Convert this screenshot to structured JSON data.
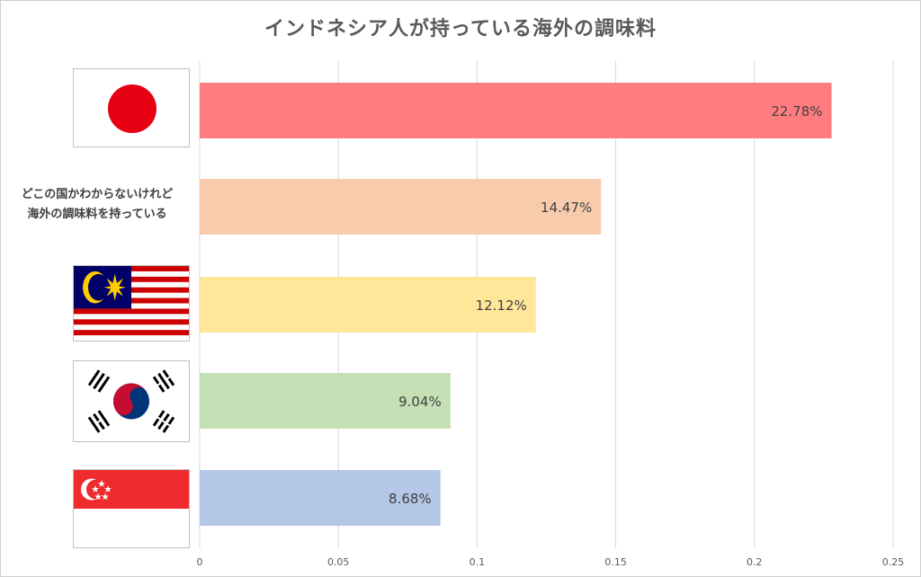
{
  "chart_data": {
    "type": "bar",
    "orientation": "horizontal",
    "title": "インドネシア人が持っている海外の調味料",
    "categories": [
      {
        "kind": "flag",
        "icon": "japan-flag-icon"
      },
      {
        "kind": "text",
        "lines": [
          "どこの国かわからないけれど",
          "海外の調味料を持っている"
        ]
      },
      {
        "kind": "flag",
        "icon": "malaysia-flag-icon"
      },
      {
        "kind": "flag",
        "icon": "south-korea-flag-icon"
      },
      {
        "kind": "flag",
        "icon": "singapore-flag-icon"
      }
    ],
    "values": [
      0.2278,
      0.1447,
      0.1212,
      0.0904,
      0.0868
    ],
    "data_labels": [
      "22.78%",
      "14.47%",
      "12.12%",
      "9.04%",
      "8.68%"
    ],
    "colors": [
      "#ff7c80",
      "#f8cbad",
      "#ffe699",
      "#c5e0b4",
      "#b4c7e7"
    ],
    "xlim": [
      0,
      0.25
    ],
    "xticks": [
      "0",
      "0.05",
      "0.1",
      "0.15",
      "0.2",
      "0.25"
    ],
    "grid": true,
    "legend": "none"
  }
}
